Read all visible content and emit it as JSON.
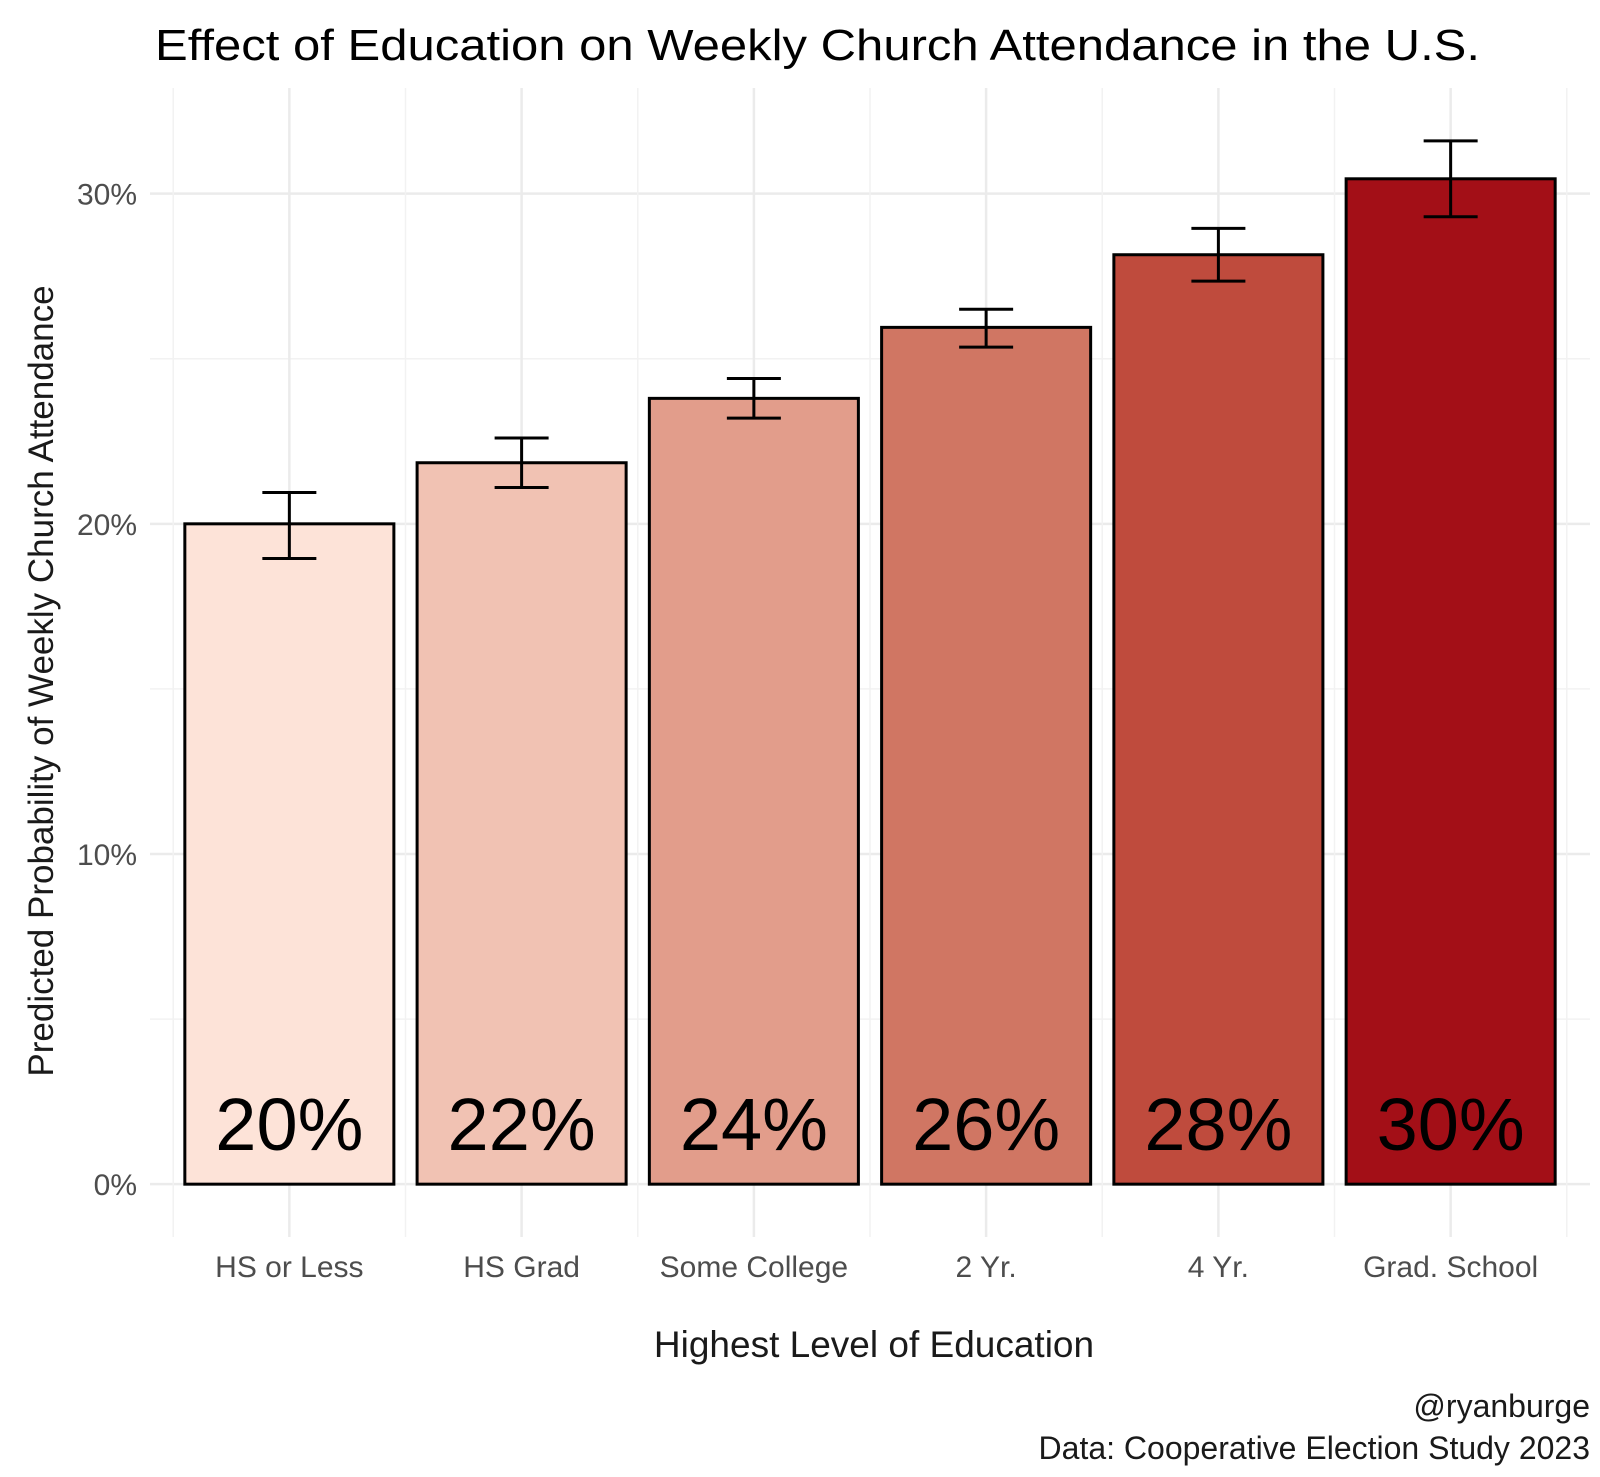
{
  "chart_data": {
    "type": "bar",
    "title": "Effect of Education on Weekly Church Attendance in the U.S.",
    "xlabel": "Highest Level of Education",
    "ylabel": "Predicted Probability of Weekly Church Attendance",
    "categories": [
      "HS or Less",
      "HS Grad",
      "Some College",
      "2 Yr.",
      "4 Yr.",
      "Grad. School"
    ],
    "values": [
      20.0,
      21.85,
      23.8,
      25.95,
      28.15,
      30.45
    ],
    "error_low": [
      18.95,
      21.1,
      23.2,
      25.35,
      27.35,
      29.3
    ],
    "error_high": [
      20.95,
      22.6,
      24.4,
      26.5,
      28.95,
      31.6
    ],
    "value_labels": [
      "20%",
      "22%",
      "24%",
      "26%",
      "28%",
      "30%"
    ],
    "bar_colors": [
      "#fde3d8",
      "#f1c2b3",
      "#e29d8b",
      "#d07663",
      "#bf4b3d",
      "#a30f17"
    ],
    "ylim": [
      -1.6,
      33.2
    ],
    "yticks": [
      0,
      10,
      20,
      30
    ],
    "ytick_labels": [
      "0%",
      "10%",
      "20%",
      "30%"
    ],
    "grid": true,
    "legend": "none"
  },
  "caption": {
    "line1": "@ryanburge",
    "line2": "Data: Cooperative Election Study 2023"
  }
}
